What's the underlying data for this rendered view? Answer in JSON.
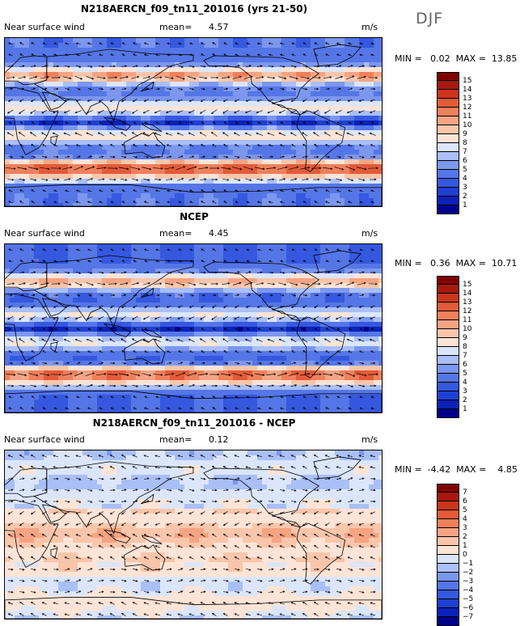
{
  "season": "DJF",
  "colors": {
    "speed": [
      "#00008b",
      "#0a22b8",
      "#1f3fd2",
      "#3558df",
      "#5576e6",
      "#7c97ee",
      "#a9bff6",
      "#dbe6fb",
      "#fde4d6",
      "#f9c6ab",
      "#f5a483",
      "#f0805c",
      "#e35b39",
      "#c9361e",
      "#a8180e",
      "#7f0000"
    ],
    "diff": [
      "#00008b",
      "#0a22b8",
      "#1f3fd2",
      "#3558df",
      "#5576e6",
      "#7c97ee",
      "#a9bff6",
      "#dbe6fb",
      "#fde4d6",
      "#f9c6ab",
      "#f5a483",
      "#f0805c",
      "#e35b39",
      "#c9361e",
      "#a8180e",
      "#7f0000"
    ],
    "coast": "#000000"
  },
  "panels": [
    {
      "title": "N218AERCN_f09_tn11_201016 (yrs 21-50)",
      "var_label": "Near surface wind",
      "mean_label": "mean=",
      "mean_value": "4.57",
      "units": "m/s",
      "stats": "MIN =   0.02  MAX =  13.85",
      "palette": "speed",
      "colorbar_labels": [
        "15",
        "14",
        "13",
        "12",
        "11",
        "10",
        "9",
        "8",
        "7",
        "6",
        "5",
        "4",
        "3",
        "2",
        "1"
      ],
      "field_kind": "model"
    },
    {
      "title": "NCEP",
      "var_label": "Near surface wind",
      "mean_label": "mean=",
      "mean_value": "4.45",
      "units": "m/s",
      "stats": "MIN =   0.36  MAX =  10.71",
      "palette": "speed",
      "colorbar_labels": [
        "15",
        "14",
        "13",
        "12",
        "11",
        "10",
        "9",
        "8",
        "7",
        "6",
        "5",
        "4",
        "3",
        "2",
        "1"
      ],
      "field_kind": "obs"
    },
    {
      "title": "N218AERCN_f09_tn11_201016 - NCEP",
      "var_label": "Near surface wind",
      "mean_label": "mean=",
      "mean_value": "0.12",
      "units": "m/s",
      "stats": "MIN =  -4.42  MAX =    4.85",
      "palette": "diff",
      "colorbar_labels": [
        "7",
        "6",
        "5",
        "4",
        "3",
        "2",
        "1",
        "0",
        "−1",
        "−2",
        "−3",
        "−4",
        "−5",
        "−6",
        "−7"
      ],
      "field_kind": "diff"
    }
  ]
}
